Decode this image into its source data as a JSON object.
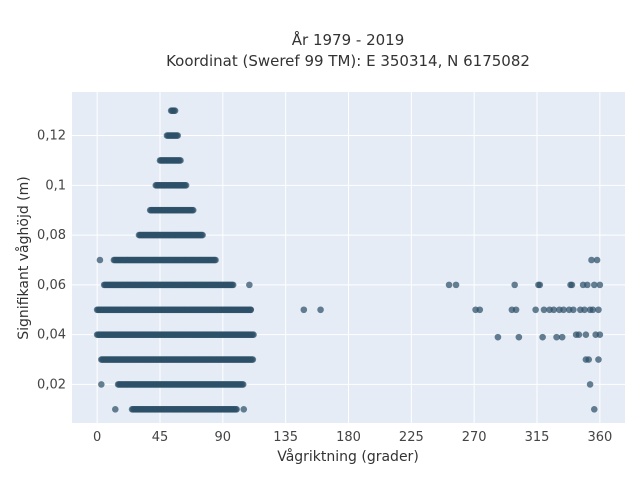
{
  "chart_data": {
    "type": "scatter",
    "title": "År 1979 - 2019",
    "subtitle": "Koordinat (Sweref 99 TM): E 350314, N 6175082",
    "xlabel": "Vågriktning (grader)",
    "ylabel": "Signifikant våghöjd (m)",
    "xlim": [
      -18,
      378
    ],
    "ylim": [
      0.0045,
      0.1375
    ],
    "x_ticks": [
      0,
      45,
      90,
      135,
      180,
      225,
      270,
      315,
      360
    ],
    "x_tick_labels": [
      "0",
      "45",
      "90",
      "135",
      "180",
      "225",
      "270",
      "315",
      "360"
    ],
    "y_ticks": [
      0.02,
      0.04,
      0.06,
      0.08,
      0.1,
      0.12
    ],
    "y_tick_labels": [
      "0,02",
      "0,04",
      "0,06",
      "0,08",
      "0,1",
      "0,12"
    ],
    "grid": true,
    "point_color": "#2e5068",
    "dense_bands": [
      {
        "y": 0.01,
        "x_from": 25,
        "x_to": 100
      },
      {
        "y": 0.02,
        "x_from": 15,
        "x_to": 105
      },
      {
        "y": 0.03,
        "x_from": 3,
        "x_to": 112
      },
      {
        "y": 0.04,
        "x_from": 0,
        "x_to": 112
      },
      {
        "y": 0.05,
        "x_from": 0,
        "x_to": 110
      },
      {
        "y": 0.06,
        "x_from": 5,
        "x_to": 98
      },
      {
        "y": 0.07,
        "x_from": 12,
        "x_to": 85
      },
      {
        "y": 0.08,
        "x_from": 30,
        "x_to": 76
      },
      {
        "y": 0.09,
        "x_from": 38,
        "x_to": 69
      },
      {
        "y": 0.1,
        "x_from": 42,
        "x_to": 64
      },
      {
        "y": 0.11,
        "x_from": 45,
        "x_to": 60
      },
      {
        "y": 0.12,
        "x_from": 50,
        "x_to": 58
      },
      {
        "y": 0.13,
        "x_from": 53,
        "x_to": 56
      }
    ],
    "points": [
      {
        "x": 13,
        "y": 0.01
      },
      {
        "x": 105,
        "y": 0.01
      },
      {
        "x": 3,
        "y": 0.02
      },
      {
        "x": 2,
        "y": 0.07
      },
      {
        "x": 109,
        "y": 0.06
      },
      {
        "x": 110,
        "y": 0.05
      },
      {
        "x": 148,
        "y": 0.05
      },
      {
        "x": 160,
        "y": 0.05
      },
      {
        "x": 252,
        "y": 0.06
      },
      {
        "x": 257,
        "y": 0.06
      },
      {
        "x": 271,
        "y": 0.05
      },
      {
        "x": 274,
        "y": 0.05
      },
      {
        "x": 287,
        "y": 0.039
      },
      {
        "x": 297,
        "y": 0.05
      },
      {
        "x": 299,
        "y": 0.06
      },
      {
        "x": 300,
        "y": 0.05
      },
      {
        "x": 302,
        "y": 0.039
      },
      {
        "x": 314,
        "y": 0.05
      },
      {
        "x": 316,
        "y": 0.06
      },
      {
        "x": 317,
        "y": 0.06
      },
      {
        "x": 319,
        "y": 0.039
      },
      {
        "x": 320,
        "y": 0.05
      },
      {
        "x": 324,
        "y": 0.05
      },
      {
        "x": 327,
        "y": 0.05
      },
      {
        "x": 331,
        "y": 0.05
      },
      {
        "x": 329,
        "y": 0.039
      },
      {
        "x": 333,
        "y": 0.039
      },
      {
        "x": 334,
        "y": 0.05
      },
      {
        "x": 338,
        "y": 0.05
      },
      {
        "x": 339,
        "y": 0.06
      },
      {
        "x": 340,
        "y": 0.06
      },
      {
        "x": 341,
        "y": 0.05
      },
      {
        "x": 343,
        "y": 0.04
      },
      {
        "x": 345,
        "y": 0.04
      },
      {
        "x": 346,
        "y": 0.05
      },
      {
        "x": 348,
        "y": 0.06
      },
      {
        "x": 349,
        "y": 0.05
      },
      {
        "x": 350,
        "y": 0.04
      },
      {
        "x": 351,
        "y": 0.06
      },
      {
        "x": 352,
        "y": 0.03
      },
      {
        "x": 353,
        "y": 0.05
      },
      {
        "x": 354,
        "y": 0.07
      },
      {
        "x": 355,
        "y": 0.05
      },
      {
        "x": 356,
        "y": 0.06
      },
      {
        "x": 357,
        "y": 0.04
      },
      {
        "x": 358,
        "y": 0.07
      },
      {
        "x": 359,
        "y": 0.05
      },
      {
        "x": 360,
        "y": 0.04
      },
      {
        "x": 360,
        "y": 0.06
      },
      {
        "x": 350,
        "y": 0.03
      },
      {
        "x": 359,
        "y": 0.03
      },
      {
        "x": 353,
        "y": 0.02
      },
      {
        "x": 356,
        "y": 0.01
      }
    ]
  }
}
